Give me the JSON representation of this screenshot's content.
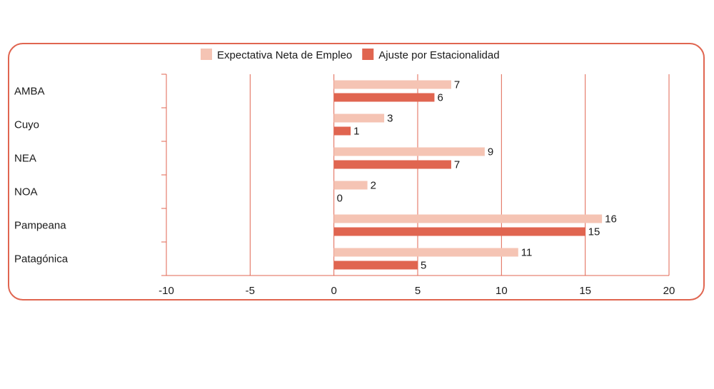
{
  "chart_data": {
    "type": "bar",
    "orientation": "horizontal",
    "categories": [
      "AMBA",
      "Cuyo",
      "NEA",
      "NOA",
      "Pampeana",
      "Patagónica"
    ],
    "series": [
      {
        "name": "Expectativa Neta de Empleo",
        "values": [
          7,
          3,
          9,
          2,
          16,
          11
        ],
        "color": "#f5c4b4"
      },
      {
        "name": "Ajuste por Estacionalidad",
        "values": [
          6,
          1,
          7,
          0,
          15,
          5
        ],
        "color": "#e06550"
      }
    ],
    "xlim": [
      -10,
      20
    ],
    "xticks": [
      -10,
      -5,
      0,
      5,
      10,
      15,
      20
    ],
    "grid": "vertical",
    "legend_position": "top-center",
    "frame_color": "#e06550",
    "axis_color": "#e06550"
  }
}
